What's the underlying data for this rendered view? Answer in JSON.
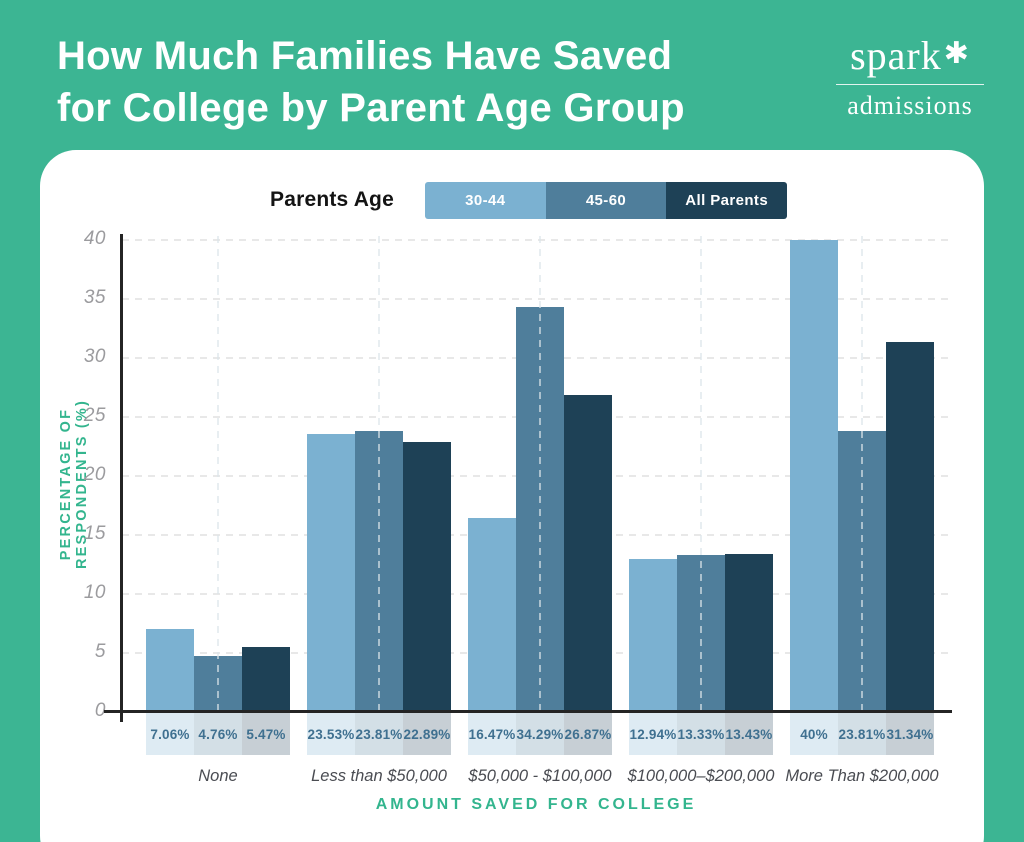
{
  "page": {
    "background_color": "#3cb593",
    "accent_green": "#33b58e"
  },
  "header": {
    "title": "How Much Families Have Saved for College by Parent Age Group",
    "title_lines": [
      "How Much Families Have Saved",
      "for College by Parent Age Group"
    ],
    "logo": {
      "brand": "spark",
      "star": "✱",
      "tagline": "admissions"
    }
  },
  "legend": {
    "label": "Parents Age",
    "items": [
      {
        "label": "30-44",
        "color": "#7bb1d1"
      },
      {
        "label": "45-60",
        "color": "#4f7e9b"
      },
      {
        "label": "All Parents",
        "color": "#1e4156"
      }
    ]
  },
  "chart_data": {
    "type": "bar",
    "title": "How Much Families Have Saved for College by Parent Age Group",
    "xlabel": "AMOUNT SAVED FOR COLLEGE",
    "ylabel": "PERCENTAGE OF RESPONDENTS (%)",
    "ylim": [
      0,
      40
    ],
    "yticks": [
      0,
      5,
      10,
      15,
      20,
      25,
      30,
      35,
      40
    ],
    "grid": true,
    "legend_position": "top",
    "categories": [
      "None",
      "Less than $50,000",
      "$50,000 - $100,000",
      "$100,000–$200,000",
      "More Than $200,000"
    ],
    "series": [
      {
        "name": "30-44",
        "color": "#7bb1d1",
        "values": [
          7.06,
          23.53,
          16.47,
          12.94,
          40
        ],
        "labels": [
          "7.06%",
          "23.53%",
          "16.47%",
          "12.94%",
          "40%"
        ]
      },
      {
        "name": "45-60",
        "color": "#4f7e9b",
        "values": [
          4.76,
          23.81,
          34.29,
          13.33,
          23.81
        ],
        "labels": [
          "4.76%",
          "23.81%",
          "34.29%",
          "13.33%",
          "23.81%"
        ]
      },
      {
        "name": "All Parents",
        "color": "#1e4156",
        "values": [
          5.47,
          22.89,
          26.87,
          13.43,
          31.34
        ],
        "labels": [
          "5.47%",
          "22.89%",
          "26.87%",
          "13.43%",
          "31.34%"
        ]
      }
    ],
    "value_label_color": "#3f7090",
    "tick_color": "#9b9b9e",
    "axis_color": "#242424"
  }
}
